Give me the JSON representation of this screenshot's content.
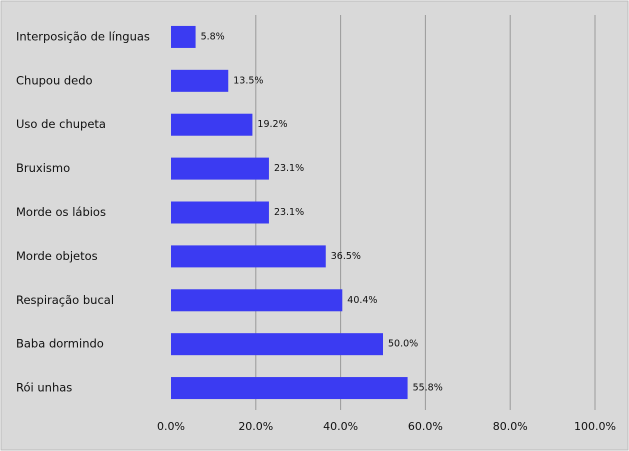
{
  "chart_data": {
    "type": "hbar",
    "categories": [
      "Interposição de línguas",
      "Chupou dedo",
      "Uso de chupeta",
      "Bruxismo",
      "Morde os lábios",
      "Morde objetos",
      "Respiração bucal",
      "Baba dormindo",
      "Rói unhas"
    ],
    "values": [
      5.8,
      13.5,
      19.2,
      23.1,
      23.1,
      36.5,
      40.4,
      50.0,
      55.8
    ],
    "value_labels": [
      "5.8%",
      "13.5%",
      "19.2%",
      "23.1%",
      "23.1%",
      "36.5%",
      "40.4%",
      "50.0%",
      "55.8%"
    ],
    "color": "#3b3bf2",
    "xlim": [
      0,
      100
    ],
    "xticks": [
      {
        "value": 0,
        "label": "0.0%"
      },
      {
        "value": 20,
        "label": "20.0%"
      },
      {
        "value": 40,
        "label": "40.0%"
      },
      {
        "value": 60,
        "label": "60.0%"
      },
      {
        "value": 80,
        "label": "80.0%"
      },
      {
        "value": 100,
        "label": "100.0%"
      }
    ],
    "grid": true
  }
}
